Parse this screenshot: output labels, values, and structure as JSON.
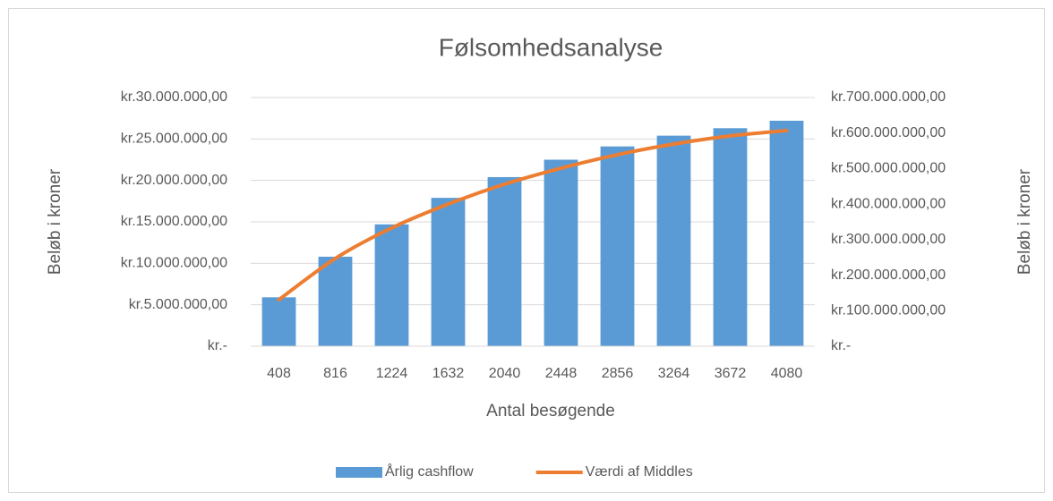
{
  "chart_data": {
    "type": "bar_line",
    "title": "Følsomhedsanalyse",
    "categories": [
      "408",
      "816",
      "1224",
      "1632",
      "2040",
      "2448",
      "2856",
      "3264",
      "3672",
      "4080"
    ],
    "series": [
      {
        "name": "Årlig cashflow",
        "color": "#5b9bd5",
        "type": "bar",
        "values": [
          5900000,
          10800000,
          14700000,
          17900000,
          20400000,
          22500000,
          24100000,
          25400000,
          26300000,
          27200000
        ]
      },
      {
        "name": "Værdi af Middles",
        "color": "#ed7d31",
        "type": "line",
        "axis": "y2",
        "values": [
          131000000,
          247000000,
          333000000,
          400000000,
          456000000,
          501000000,
          539000000,
          569000000,
          592000000,
          607000000
        ]
      }
    ],
    "ylabel": "Beløb i kroner",
    "y2label": "Beløb i kroner",
    "xlabel": "Antal besøgende",
    "ylim": [
      0,
      30000000
    ],
    "yticks": [
      {
        "value": 0,
        "label": "kr.-"
      },
      {
        "value": 5000000,
        "label": "kr.5.000.000,00"
      },
      {
        "value": 10000000,
        "label": "kr.10.000.000,00"
      },
      {
        "value": 15000000,
        "label": "kr.15.000.000,00"
      },
      {
        "value": 20000000,
        "label": "kr.20.000.000,00"
      },
      {
        "value": 25000000,
        "label": "kr.25.000.000,00"
      },
      {
        "value": 30000000,
        "label": "kr.30.000.000,00"
      }
    ],
    "y2lim": [
      0,
      700000000
    ],
    "y2ticks": [
      {
        "value": 0,
        "label": "kr.-"
      },
      {
        "value": 100000000,
        "label": "kr.100.000.000,00"
      },
      {
        "value": 200000000,
        "label": "kr.200.000.000,00"
      },
      {
        "value": 300000000,
        "label": "kr.300.000.000,00"
      },
      {
        "value": 400000000,
        "label": "kr.400.000.000,00"
      },
      {
        "value": 500000000,
        "label": "kr.500.000.000,00"
      },
      {
        "value": 600000000,
        "label": "kr.600.000.000,00"
      },
      {
        "value": 700000000,
        "label": "kr.700.000.000,00"
      }
    ],
    "grid": true,
    "legend": "bottom"
  }
}
